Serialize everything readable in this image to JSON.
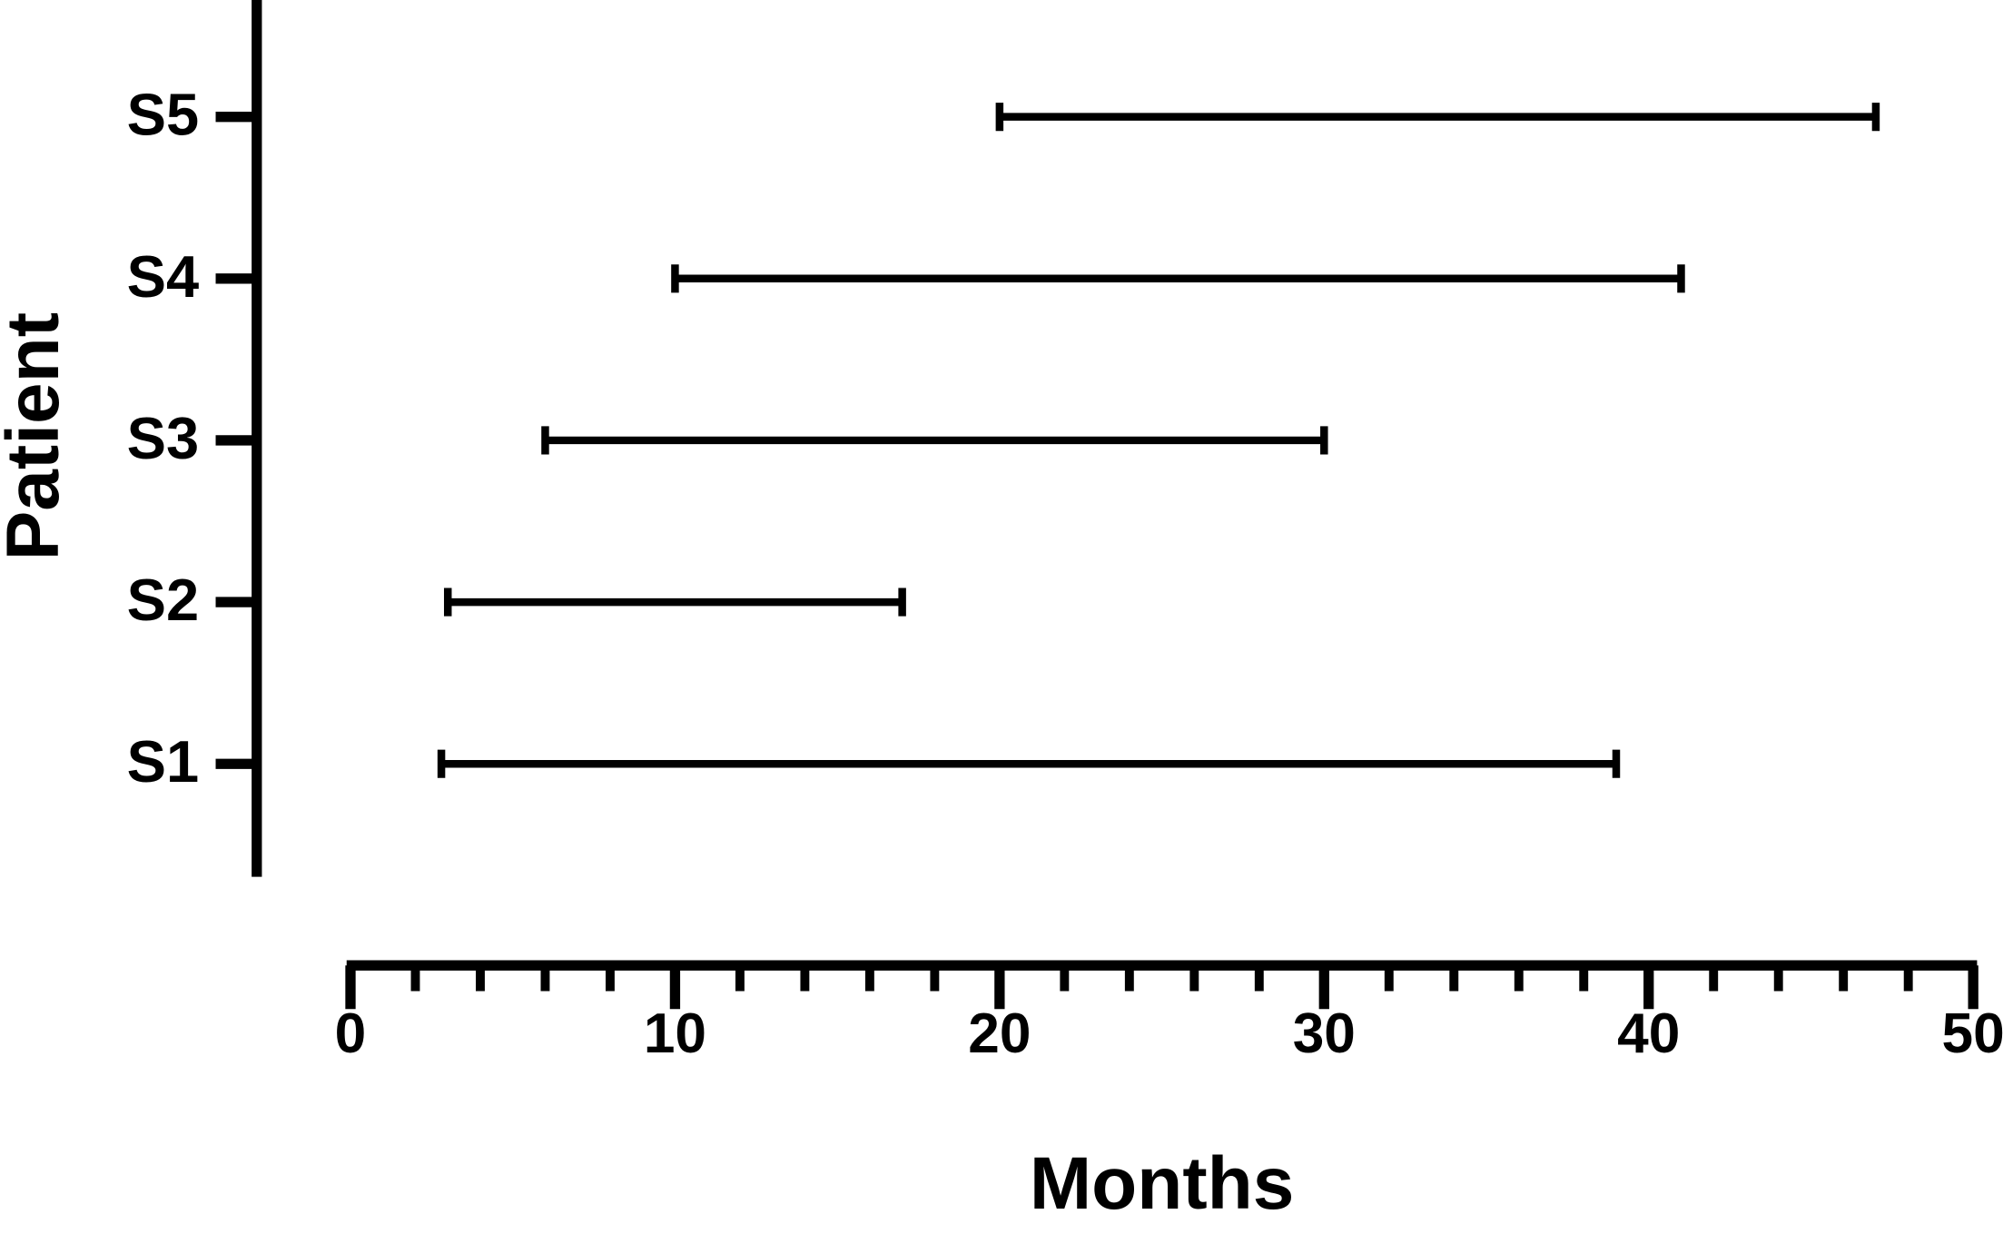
{
  "chart_data": {
    "type": "range",
    "x_label": "Months",
    "y_label": "Patient",
    "categories": [
      "S1",
      "S2",
      "S3",
      "S4",
      "S5"
    ],
    "start": [
      2.8,
      3,
      6,
      10,
      20
    ],
    "end": [
      39,
      17,
      30,
      41,
      47
    ],
    "color": "#000000",
    "xlim": [
      0,
      50
    ],
    "xticks": [
      0,
      10,
      20,
      30,
      40,
      50
    ],
    "xminorticks": [
      2,
      4,
      6,
      8,
      12,
      14,
      16,
      18,
      22,
      24,
      26,
      28,
      32,
      34,
      36,
      38,
      42,
      44,
      46,
      48
    ],
    "grid": false
  }
}
